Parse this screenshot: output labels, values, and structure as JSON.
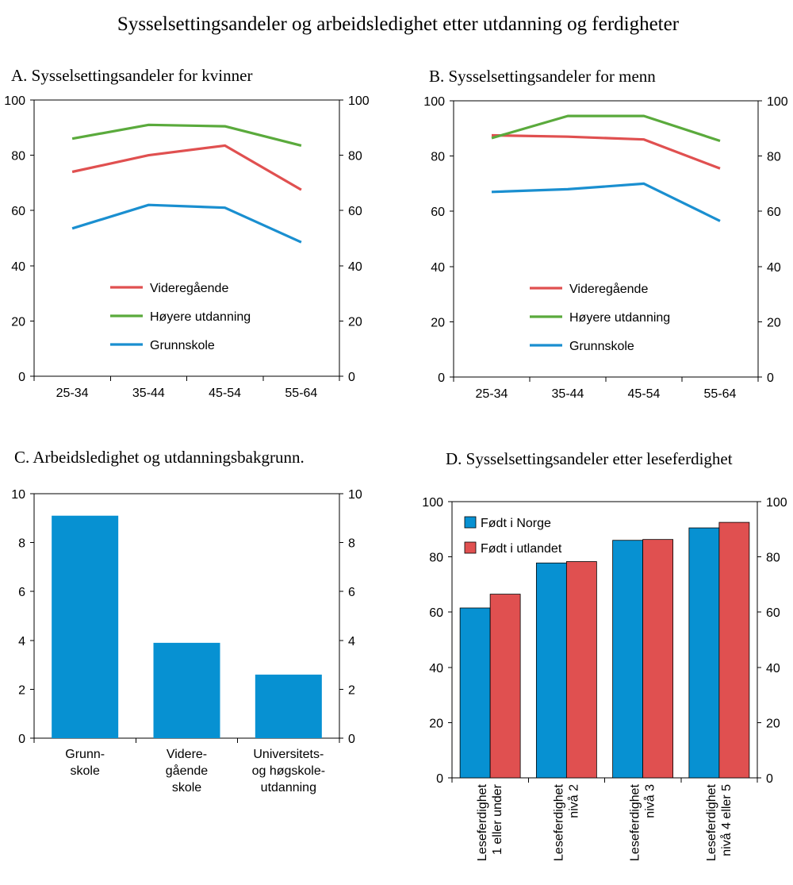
{
  "title": "Sysselsettingsandeler og arbeidsledighet etter utdanning og ferdigheter",
  "colors": {
    "videregaende": "#e05050",
    "hoyere": "#5aaa3c",
    "grunnskole": "#1a8fd0",
    "bar_blue": "#0791d2",
    "bar_red": "#e05050"
  },
  "chart_data": [
    {
      "id": "A",
      "type": "line",
      "title": "A.  Sysselsettingsandeler for kvinner",
      "categories": [
        "25-34",
        "35-44",
        "45-54",
        "55-64"
      ],
      "ylim": [
        0,
        100
      ],
      "yticks": [
        "0",
        "20",
        "40",
        "60",
        "80",
        "100"
      ],
      "legend_position": "center-left",
      "series": [
        {
          "name": "Videregående",
          "color": "#e05050",
          "values": [
            74,
            80,
            83.5,
            67.5
          ]
        },
        {
          "name": "Høyere utdanning",
          "color": "#5aaa3c",
          "values": [
            86,
            91,
            90.5,
            83.5
          ]
        },
        {
          "name": "Grunnskole",
          "color": "#1a8fd0",
          "values": [
            53.5,
            62,
            61,
            48.5
          ]
        }
      ]
    },
    {
      "id": "B",
      "type": "line",
      "title": "B.  Sysselsettingsandeler for menn",
      "categories": [
        "25-34",
        "35-44",
        "45-54",
        "55-64"
      ],
      "ylim": [
        0,
        100
      ],
      "yticks": [
        "0",
        "20",
        "40",
        "60",
        "80",
        "100"
      ],
      "legend_position": "center-left",
      "series": [
        {
          "name": "Videregående",
          "color": "#e05050",
          "values": [
            87.5,
            87,
            86,
            75.5
          ]
        },
        {
          "name": "Høyere utdanning",
          "color": "#5aaa3c",
          "values": [
            86.5,
            94.5,
            94.5,
            85.5
          ]
        },
        {
          "name": "Grunnskole",
          "color": "#1a8fd0",
          "values": [
            67,
            68,
            70,
            56.5
          ]
        }
      ]
    },
    {
      "id": "C",
      "type": "bar",
      "title": "C.  Arbeidsledighet og utdanningsbakgrunn.",
      "categories": [
        [
          "Grunn-",
          "skole"
        ],
        [
          "Videre-",
          "gående",
          "skole"
        ],
        [
          "Universitets-",
          "og høgskole-",
          "utdanning"
        ]
      ],
      "ylim": [
        0,
        10
      ],
      "yticks": [
        "0",
        "2",
        "4",
        "6",
        "8",
        "10"
      ],
      "series": [
        {
          "name": "Arbeidsledighet",
          "color": "#0791d2",
          "values": [
            9.1,
            3.9,
            2.6
          ]
        }
      ]
    },
    {
      "id": "D",
      "type": "bar",
      "title": "D.  Sysselsettingsandeler etter leseferdighet",
      "categories": [
        [
          "Leseferdighet",
          "1 eller under"
        ],
        [
          "Leseferdighet",
          "nivå 2"
        ],
        [
          "Leseferdighet",
          "nivå 3"
        ],
        [
          "Leseferdighet",
          "nivå 4 eller 5"
        ]
      ],
      "ylim": [
        0,
        100
      ],
      "yticks": [
        "0",
        "20",
        "40",
        "60",
        "80",
        "100"
      ],
      "legend_position": "top-left",
      "series": [
        {
          "name": "Født i Norge",
          "color": "#0791d2",
          "values": [
            61.5,
            77.8,
            86,
            90.5
          ]
        },
        {
          "name": "Født i utlandet",
          "color": "#e05050",
          "values": [
            66.5,
            78.3,
            86.3,
            92.5
          ]
        }
      ]
    }
  ]
}
